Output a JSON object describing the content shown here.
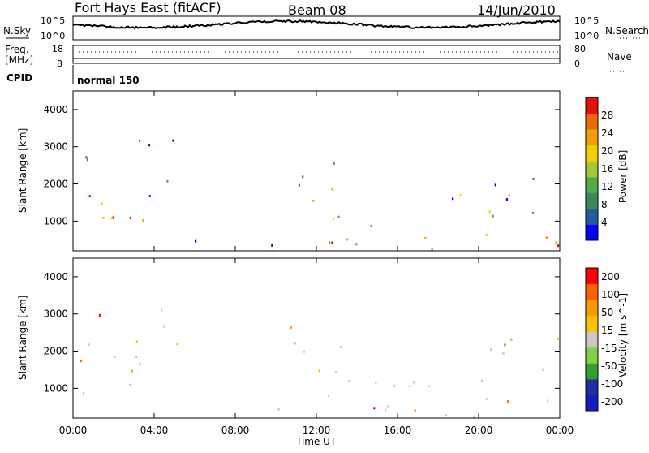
{
  "header": {
    "station": "Fort Hays East (fitACF)",
    "beam": "Beam 08",
    "date": "14/Jun/2010"
  },
  "top_panels": {
    "nsky_label": "N.Sky",
    "nsky_ticks": [
      "10^5",
      "10^0"
    ],
    "nsearch_label": "N.Search",
    "nsearch_ticks": [
      "10^5",
      "10^0"
    ],
    "freq_label": "Freq.",
    "freq_unit": "[MHz]",
    "freq_ticks": [
      "18",
      "8"
    ],
    "nave_label": "Nave",
    "nave_ticks": [
      "80",
      "0"
    ],
    "cpid_label": "CPID",
    "cpid_value": "normal 150"
  },
  "colors": {
    "power": [
      "#0000ff",
      "#1f5fa0",
      "#3a8a5a",
      "#4fb045",
      "#a8c830",
      "#f0d000",
      "#f0a000",
      "#f06800",
      "#e81000"
    ],
    "velocity": [
      "#ff0000",
      "#ff6000",
      "#ff9a00",
      "#ffc000",
      "#c8c8c8",
      "#80d040",
      "#2fa02f",
      "#1f2fa0",
      "#1020c0"
    ]
  },
  "chart_data": [
    {
      "type": "heatmap",
      "name": "power-panel",
      "ylabel": "Slant Range [km]",
      "yticks": [
        "4000",
        "3000",
        "2000",
        "1000"
      ],
      "ylim": [
        200,
        4500
      ],
      "xlim": [
        0,
        24
      ],
      "xticks": [
        "00:00",
        "04:00",
        "08:00",
        "12:00",
        "16:00",
        "20:00",
        "00:00"
      ],
      "colorbar_label": "Power [dB]",
      "colorbar_ticks": [
        "28",
        "24",
        "20",
        "16",
        "12",
        "8",
        "4"
      ],
      "regions": [
        {
          "t0": 0.1,
          "t1": 3.8,
          "r0": 300,
          "r1": 2200,
          "level": 0.85
        },
        {
          "t0": 0.3,
          "t1": 2.5,
          "r0": 2200,
          "r1": 3100,
          "level": 0.3
        },
        {
          "t0": 3.0,
          "t1": 5.5,
          "r0": 1800,
          "r1": 3400,
          "level": 0.2
        },
        {
          "t0": 5.5,
          "t1": 10.5,
          "r0": 200,
          "r1": 500,
          "level": 0.15
        },
        {
          "t0": 10.5,
          "t1": 14.5,
          "r0": 1100,
          "r1": 2700,
          "level": 0.55
        },
        {
          "t0": 12.5,
          "t1": 24.0,
          "r0": 250,
          "r1": 1300,
          "level": 0.65
        },
        {
          "t0": 18.5,
          "t1": 24.0,
          "r0": 1500,
          "r1": 2400,
          "level": 0.3
        },
        {
          "t0": 22.5,
          "t1": 24.0,
          "r0": 250,
          "r1": 600,
          "level": 0.95
        }
      ]
    },
    {
      "type": "heatmap",
      "name": "velocity-panel",
      "ylabel": "Slant Range [km]",
      "yticks": [
        "4000",
        "3000",
        "2000",
        "1000"
      ],
      "ylim": [
        200,
        4500
      ],
      "xlim": [
        0,
        24
      ],
      "xticks": [
        "00:00",
        "04:00",
        "08:00",
        "12:00",
        "16:00",
        "20:00",
        "00:00"
      ],
      "xlabel": "Time UT",
      "colorbar_label": "Velocity [m s^-1]",
      "colorbar_ticks": [
        "200",
        "100",
        "50",
        "15",
        "-15",
        "-50",
        "-100",
        "-200"
      ],
      "regions": [
        {
          "t0": 0.1,
          "t1": 3.8,
          "r0": 400,
          "r1": 2200,
          "level": 0.45
        },
        {
          "t0": 0.3,
          "t1": 2.5,
          "r0": 2200,
          "r1": 3100,
          "level": 0.3
        },
        {
          "t0": 3.0,
          "t1": 5.5,
          "r0": 1800,
          "r1": 3400,
          "level": 0.5
        },
        {
          "t0": 5.5,
          "t1": 24.0,
          "r0": 200,
          "r1": 500,
          "level": 0.25
        },
        {
          "t0": 10.5,
          "t1": 14.5,
          "r0": 1100,
          "r1": 2700,
          "level": 0.45
        },
        {
          "t0": 12.5,
          "t1": 24.0,
          "r0": 350,
          "r1": 1300,
          "level": 0.45
        },
        {
          "t0": 18.5,
          "t1": 24.0,
          "r0": 1500,
          "r1": 2400,
          "level": 0.45
        }
      ]
    }
  ]
}
